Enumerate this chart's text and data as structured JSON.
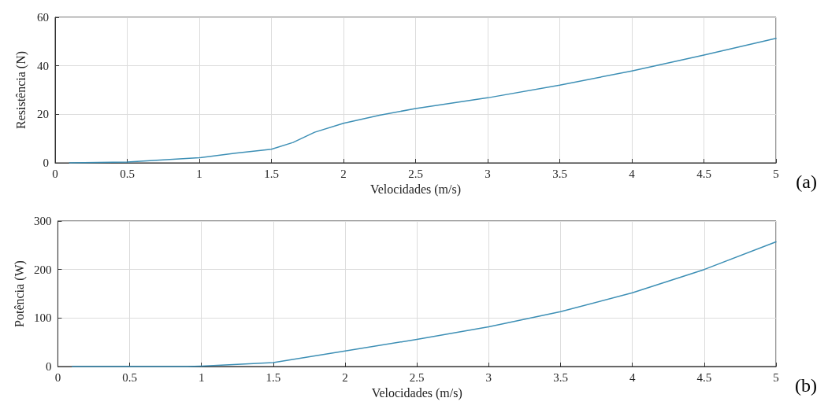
{
  "chart_data": [
    {
      "type": "line",
      "xlabel": "Velocidades (m/s)",
      "ylabel": "Resistência (N)",
      "annotations": [
        "(a)"
      ],
      "xlim": [
        0,
        5
      ],
      "xticks": [
        0,
        0.5,
        1,
        1.5,
        2,
        2.5,
        3,
        3.5,
        4,
        4.5,
        5
      ],
      "ylim": [
        0,
        60
      ],
      "yticks": [
        0,
        20,
        40,
        60
      ],
      "grid": true,
      "marker": "none",
      "line_style": "solid",
      "series": [
        {
          "color": "#3d8fb5",
          "x": [
            0.1,
            0.5,
            1,
            1.25,
            1.5,
            1.65,
            1.8,
            2,
            2.25,
            2.5,
            3,
            3.5,
            4,
            4.5,
            5
          ],
          "values": [
            0,
            0.3,
            2.1,
            4,
            5.6,
            8.4,
            12.6,
            16.3,
            19.6,
            22.4,
            26.8,
            32,
            37.9,
            44.4,
            51.3
          ]
        }
      ]
    },
    {
      "type": "line",
      "xlabel": "Velocidades (m/s)",
      "ylabel": "Potência (W)",
      "annotations": [
        "(b)"
      ],
      "xlim": [
        0,
        5
      ],
      "xticks": [
        0,
        0.5,
        1,
        1.5,
        2,
        2.5,
        3,
        3.5,
        4,
        4.5,
        5
      ],
      "ylim": [
        0,
        300
      ],
      "yticks": [
        0,
        100,
        200,
        300
      ],
      "grid": true,
      "marker": "none",
      "line_style": "solid",
      "series": [
        {
          "color": "#3d8fb5",
          "x": [
            0.1,
            0.9,
            1,
            1.5,
            2,
            2.5,
            3,
            3.5,
            4,
            4.5,
            5
          ],
          "values": [
            0,
            0,
            1,
            8,
            32,
            56,
            82,
            113,
            152,
            200,
            257
          ]
        }
      ]
    }
  ]
}
